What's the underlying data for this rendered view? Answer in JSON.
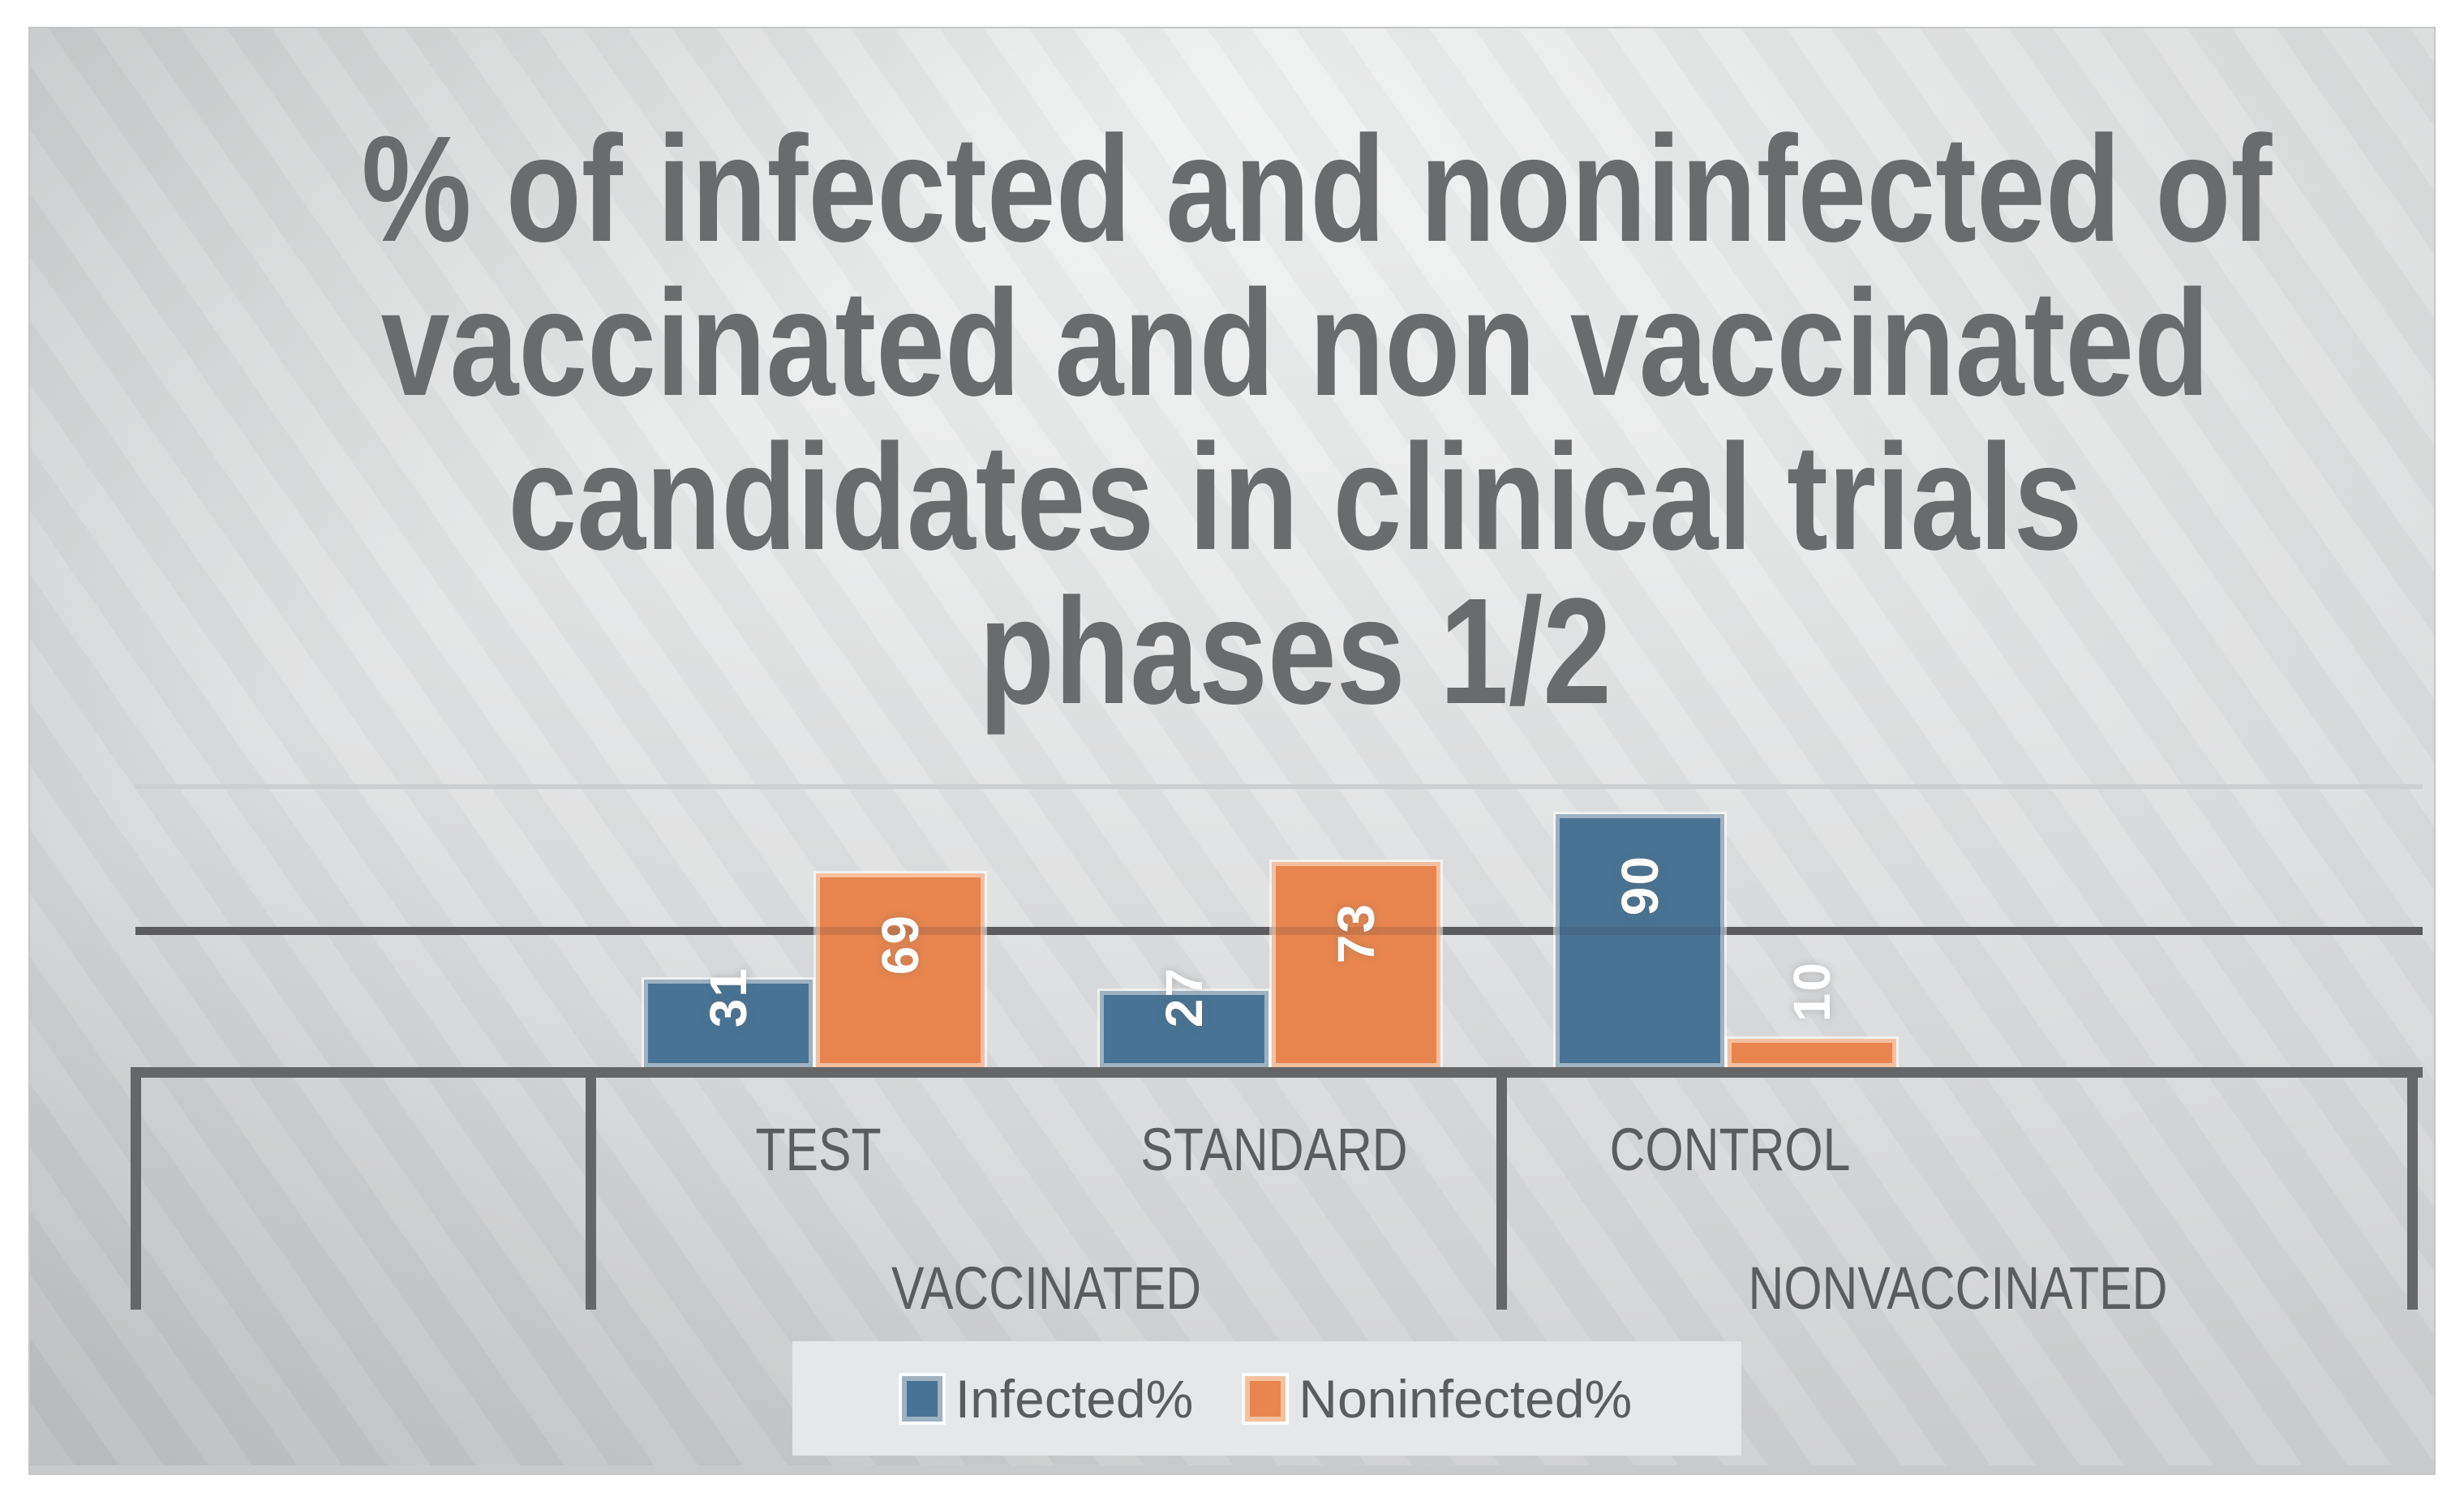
{
  "chart": {
    "title_lines": [
      "% of infected and noninfected of",
      "vaccinated and non vaccinated",
      "candidates in clinical trials",
      "phases 1/2"
    ]
  },
  "chart_data": {
    "type": "bar",
    "title": "% of infected and noninfected of vaccinated and non vaccinated candidates in clinical trials phases 1/2",
    "categories": [
      "TEST",
      "STANDARD",
      "CONTROL"
    ],
    "category_axis": {
      "slots": [
        "",
        "TEST",
        "STANDARD",
        "CONTROL",
        ""
      ],
      "groups": [
        {
          "label": "",
          "slot_span": [
            0,
            1
          ]
        },
        {
          "label": "VACCINATED",
          "slot_span": [
            1,
            3
          ]
        },
        {
          "label": "NONVACCINATED",
          "slot_span": [
            3,
            5
          ]
        }
      ]
    },
    "series": [
      {
        "name": "Infected%",
        "color": "#487394",
        "edge_tint": "#9FB2C1",
        "values": [
          31,
          27,
          90
        ]
      },
      {
        "name": "Noninfected%",
        "color": "#E8854E",
        "edge_tint": "#F5C09F",
        "values": [
          69,
          73,
          10
        ]
      }
    ],
    "xlabel": "",
    "ylabel": "",
    "ylim": [
      0,
      100
    ],
    "gridlines": [
      {
        "value": 50,
        "style": "dark"
      },
      {
        "value": 100,
        "style": "light"
      }
    ],
    "data_labels": {
      "color": "#FFFFFF",
      "rotation_deg": -90,
      "position": "inside-end"
    },
    "legend": {
      "position": "bottom",
      "entries": [
        "Infected%",
        "Noninfected%"
      ]
    }
  },
  "colors": {
    "panel_border": "#C5C6C7",
    "panel_bg_light": "#F1F2F2",
    "panel_bg_dark": "#CFD0D1",
    "title_text": "#6A6B6C",
    "axis_text": "#5B5C5D",
    "axis_line": "#656667",
    "gridline_light": "#CDCECF",
    "gridline_dark": "#636465",
    "legend_bg": "#E6E7E8",
    "data_label_text": "#FFFFFF"
  }
}
